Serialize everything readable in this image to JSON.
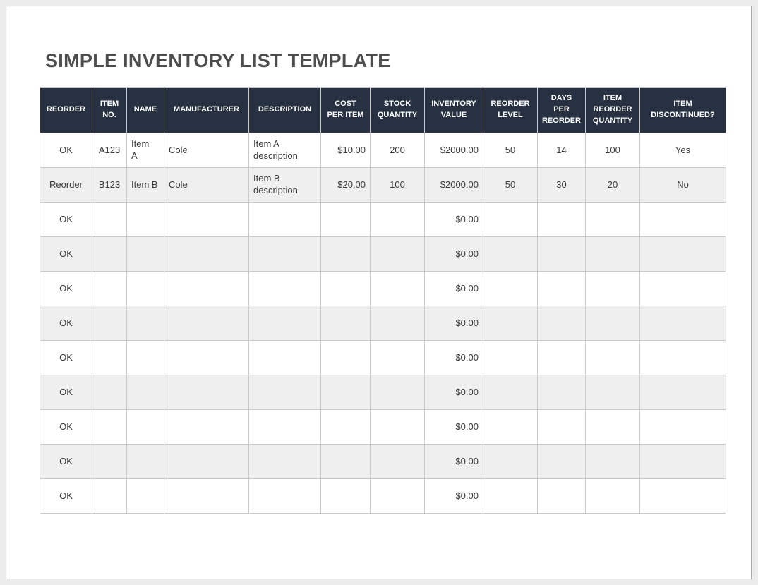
{
  "page_title": "SIMPLE INVENTORY LIST TEMPLATE",
  "colors": {
    "header_bg": "#273142",
    "header_text": "#ffffff",
    "alt_row_bg": "#efefef",
    "cell_border": "#c9c9c9",
    "title_text": "#4d4d4d",
    "cell_text": "#3a3a3a",
    "page_bg": "#ffffff",
    "canvas_bg": "#ececec"
  },
  "table": {
    "columns": [
      {
        "key": "reorder",
        "label": "REORDER",
        "align": "center"
      },
      {
        "key": "item_no",
        "label": "ITEM\nNO.",
        "align": "center"
      },
      {
        "key": "name",
        "label": "NAME",
        "align": "left"
      },
      {
        "key": "manufacturer",
        "label": "MANUFACTURER",
        "align": "left"
      },
      {
        "key": "description",
        "label": "DESCRIPTION",
        "align": "left"
      },
      {
        "key": "cost_per_item",
        "label": "COST\nPER ITEM",
        "align": "right"
      },
      {
        "key": "stock_quantity",
        "label": "STOCK\nQUANTITY",
        "align": "center"
      },
      {
        "key": "inventory_value",
        "label": "INVENTORY\nVALUE",
        "align": "right"
      },
      {
        "key": "reorder_level",
        "label": "REORDER\nLEVEL",
        "align": "center"
      },
      {
        "key": "days_per_reorder",
        "label": "DAYS\nPER\nREORDER",
        "align": "center"
      },
      {
        "key": "item_reorder_quantity",
        "label": "ITEM\nREORDER\nQUANTITY",
        "align": "center"
      },
      {
        "key": "item_discontinued",
        "label": "ITEM\nDISCONTINUED?",
        "align": "center"
      }
    ],
    "rows": [
      [
        "OK",
        "A123",
        "Item\nA",
        "Cole",
        "Item A\ndescription",
        "$10.00",
        "200",
        "$2000.00",
        "50",
        "14",
        "100",
        "Yes"
      ],
      [
        "Reorder",
        "B123",
        "Item B",
        "Cole",
        "Item B\ndescription",
        "$20.00",
        "100",
        "$2000.00",
        "50",
        "30",
        "20",
        "No"
      ],
      [
        "OK",
        "",
        "",
        "",
        "",
        "",
        "",
        "$0.00",
        "",
        "",
        "",
        ""
      ],
      [
        "OK",
        "",
        "",
        "",
        "",
        "",
        "",
        "$0.00",
        "",
        "",
        "",
        ""
      ],
      [
        "OK",
        "",
        "",
        "",
        "",
        "",
        "",
        "$0.00",
        "",
        "",
        "",
        ""
      ],
      [
        "OK",
        "",
        "",
        "",
        "",
        "",
        "",
        "$0.00",
        "",
        "",
        "",
        ""
      ],
      [
        "OK",
        "",
        "",
        "",
        "",
        "",
        "",
        "$0.00",
        "",
        "",
        "",
        ""
      ],
      [
        "OK",
        "",
        "",
        "",
        "",
        "",
        "",
        "$0.00",
        "",
        "",
        "",
        ""
      ],
      [
        "OK",
        "",
        "",
        "",
        "",
        "",
        "",
        "$0.00",
        "",
        "",
        "",
        ""
      ],
      [
        "OK",
        "",
        "",
        "",
        "",
        "",
        "",
        "$0.00",
        "",
        "",
        "",
        ""
      ],
      [
        "OK",
        "",
        "",
        "",
        "",
        "",
        "",
        "$0.00",
        "",
        "",
        "",
        ""
      ]
    ]
  }
}
